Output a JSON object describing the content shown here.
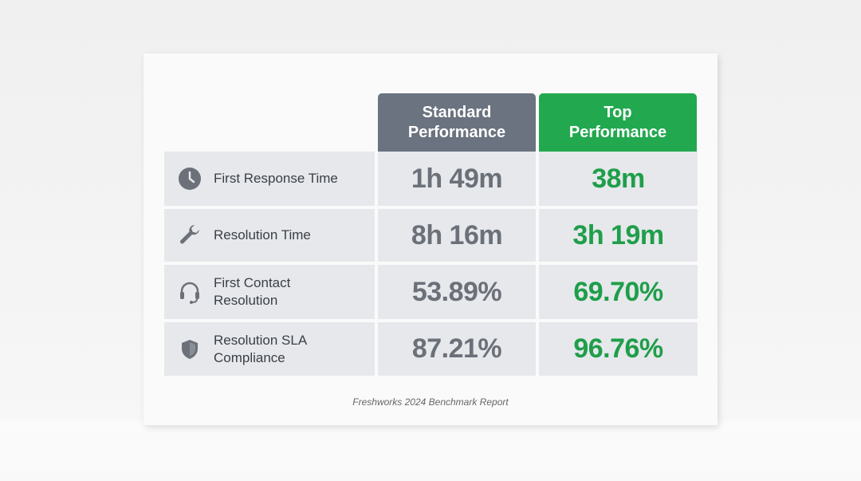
{
  "headers": {
    "standard": "Standard Performance",
    "top": "Top Performance"
  },
  "colors": {
    "standard_header": "#6b7280",
    "top_header": "#22a84f",
    "top_value": "#1f9e4a",
    "standard_value": "#6b7079"
  },
  "rows": [
    {
      "icon": "clock-icon",
      "label": "First Response Time",
      "standard": "1h 49m",
      "top": "38m"
    },
    {
      "icon": "wrench-icon",
      "label": "Resolution Time",
      "standard": "8h 16m",
      "top": "3h 19m"
    },
    {
      "icon": "headset-icon",
      "label": "First Contact Resolution",
      "standard": "53.89%",
      "top": "69.70%"
    },
    {
      "icon": "shield-icon",
      "label": "Resolution SLA Compliance",
      "standard": "87.21%",
      "top": "96.76%"
    }
  ],
  "footer": "Freshworks 2024 Benchmark Report"
}
